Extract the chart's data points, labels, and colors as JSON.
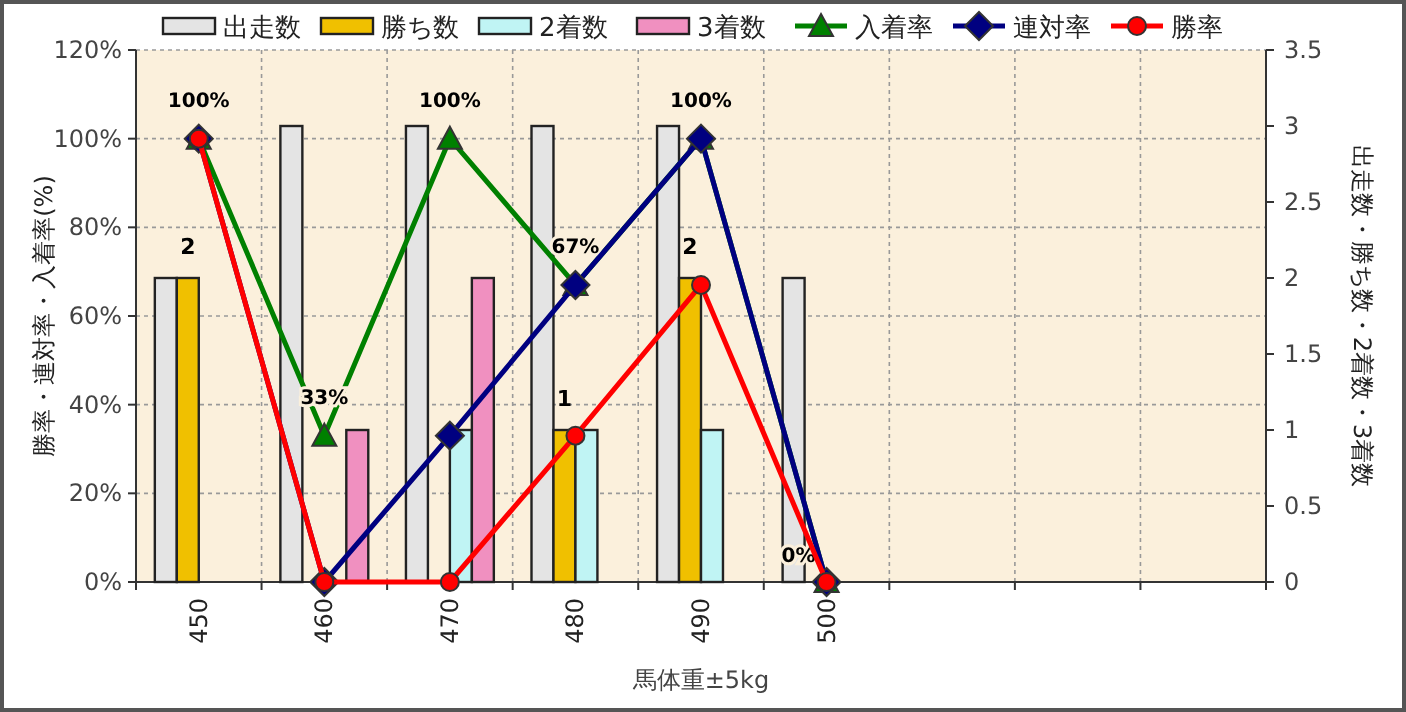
{
  "chart_data": {
    "type": "bar",
    "categories": [
      "450",
      "460",
      "470",
      "480",
      "490",
      "500",
      null,
      null,
      null
    ],
    "xlabel": "馬体重±5kg",
    "ylabel": "勝率・連対率・入着率(%)",
    "y2label": "出走数・勝ち数・2着数・3着数",
    "ylim": [
      0,
      120
    ],
    "yticks": [
      {
        "value": 0,
        "label": "0%"
      },
      {
        "value": 20,
        "label": "20%"
      },
      {
        "value": 40,
        "label": "40%"
      },
      {
        "value": 60,
        "label": "60%"
      },
      {
        "value": 80,
        "label": "80%"
      },
      {
        "value": 100,
        "label": "100%"
      },
      {
        "value": 120,
        "label": "120%"
      }
    ],
    "y2lim": [
      0,
      3.5
    ],
    "y2ticks": [
      0,
      0.5,
      1,
      1.5,
      2,
      2.5,
      3,
      3.5
    ],
    "grid": true,
    "legend": "top",
    "series": [
      {
        "name": "出走数",
        "axis": "y2",
        "color": "#e4e4e4",
        "values": [
          2,
          3,
          3,
          3,
          3,
          2,
          null,
          null,
          null
        ]
      },
      {
        "name": "勝ち数",
        "axis": "y2",
        "color": "#f0c000",
        "values": [
          2,
          0,
          0,
          1,
          2,
          0,
          null,
          null,
          null
        ],
        "value_labels": [
          "2",
          null,
          null,
          "1",
          "2",
          null,
          null,
          null,
          null
        ]
      },
      {
        "name": "2着数",
        "axis": "y2",
        "color": "#c0f4f4",
        "values": [
          0,
          0,
          1,
          1,
          1,
          0,
          null,
          null,
          null
        ]
      },
      {
        "name": "3着数",
        "axis": "y2",
        "color": "#f090c0",
        "values": [
          0,
          1,
          2,
          0,
          0,
          0,
          null,
          null,
          null
        ]
      },
      {
        "name": "入着率",
        "type": "line",
        "color": "#008000",
        "marker": "triangle",
        "values": [
          100,
          33,
          100,
          67,
          100,
          0,
          null,
          null,
          null
        ],
        "value_labels": [
          "100%",
          "33%",
          "100%",
          "67%",
          "100%",
          "0%",
          null,
          null,
          null
        ]
      },
      {
        "name": "連対率",
        "type": "line",
        "color": "#000080",
        "marker": "diamond",
        "values": [
          100,
          0,
          33,
          67,
          100,
          0,
          null,
          null,
          null
        ]
      },
      {
        "name": "勝率",
        "type": "line",
        "color": "#ff0000",
        "marker": "circle",
        "values": [
          100,
          0,
          0,
          33,
          67,
          0,
          null,
          null,
          null
        ]
      }
    ]
  }
}
